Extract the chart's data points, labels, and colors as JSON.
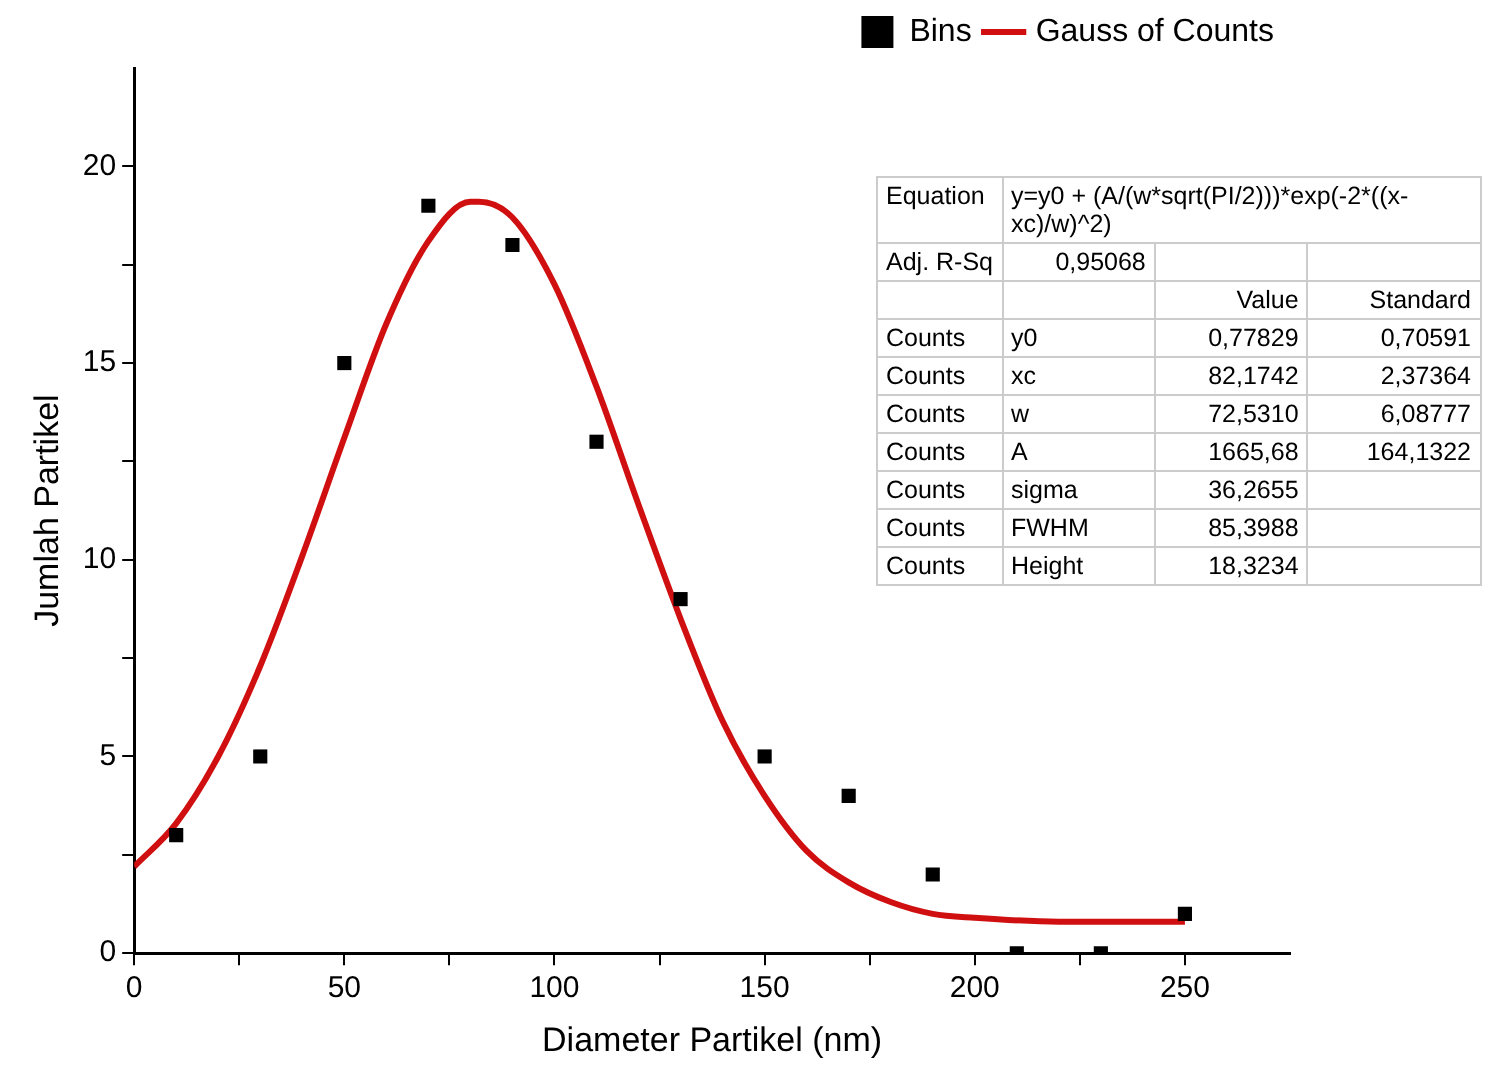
{
  "chart_data": {
    "type": "scatter",
    "xlabel": "Diameter Partikel (nm)",
    "ylabel": "Jumlah Partikel",
    "xlim": [
      0,
      275
    ],
    "xticks": [
      0,
      {
        "value": 25,
        "label": null
      },
      50,
      {
        "value": 75,
        "label": null
      },
      100,
      {
        "value": 125,
        "label": null
      },
      150,
      {
        "value": 175,
        "label": null
      },
      200,
      {
        "value": 225,
        "label": null
      },
      250
    ],
    "ylim": [
      0,
      22.5
    ],
    "yticks": [
      0,
      {
        "value": 2.5,
        "label": null
      },
      5,
      {
        "value": 7.5,
        "label": null
      },
      10,
      {
        "value": 12.5,
        "label": null
      },
      15,
      {
        "value": 17.5,
        "label": null
      },
      20
    ],
    "grid": false,
    "legend": "top right",
    "series": [
      {
        "name": "Bins",
        "marker": "square",
        "color": "#000000",
        "x": [
          10,
          30,
          50,
          70,
          90,
          110,
          130,
          150,
          170,
          190,
          210,
          230,
          250
        ],
        "values": [
          3,
          5,
          15,
          19,
          18,
          13,
          9,
          5,
          4,
          2,
          0,
          0,
          1
        ]
      },
      {
        "name": "Gauss of Counts",
        "type": "line",
        "marker": "none",
        "line_style": "solid",
        "color": "#d01010",
        "x": [
          0,
          10,
          20,
          30,
          40,
          50,
          60,
          70,
          80,
          82,
          90,
          100,
          110,
          120,
          130,
          140,
          150,
          160,
          170,
          180,
          190,
          200,
          220,
          250
        ],
        "values": [
          2.2,
          3.3,
          5.0,
          7.3,
          10.1,
          13.1,
          16.0,
          18.1,
          19.1,
          19.1,
          18.7,
          17.0,
          14.4,
          11.4,
          8.5,
          5.9,
          4.0,
          2.6,
          1.8,
          1.3,
          1.0,
          0.9,
          0.8,
          0.8
        ]
      }
    ],
    "annotations": [
      "Equation\ty=y0 + (A/(w*sqrt(PI/2)))*exp(-2*((x-xc)/w)^2)",
      "Adj. R-Sq\t0,95068\t\t",
      "\t\tValue\tStandard",
      "Counts\ty0\t0,77829\t0,70591",
      "Counts\txc\t82,1742\t2,37364",
      "Counts\tw\t72,5310\t6,08777",
      "Counts\tA\t1665,68\t164,1322",
      "Counts\tsigma\t36,2655\t",
      "Counts\tFWHM\t85,3988\t",
      "Counts\tHeight\t18,3234\t"
    ]
  }
}
